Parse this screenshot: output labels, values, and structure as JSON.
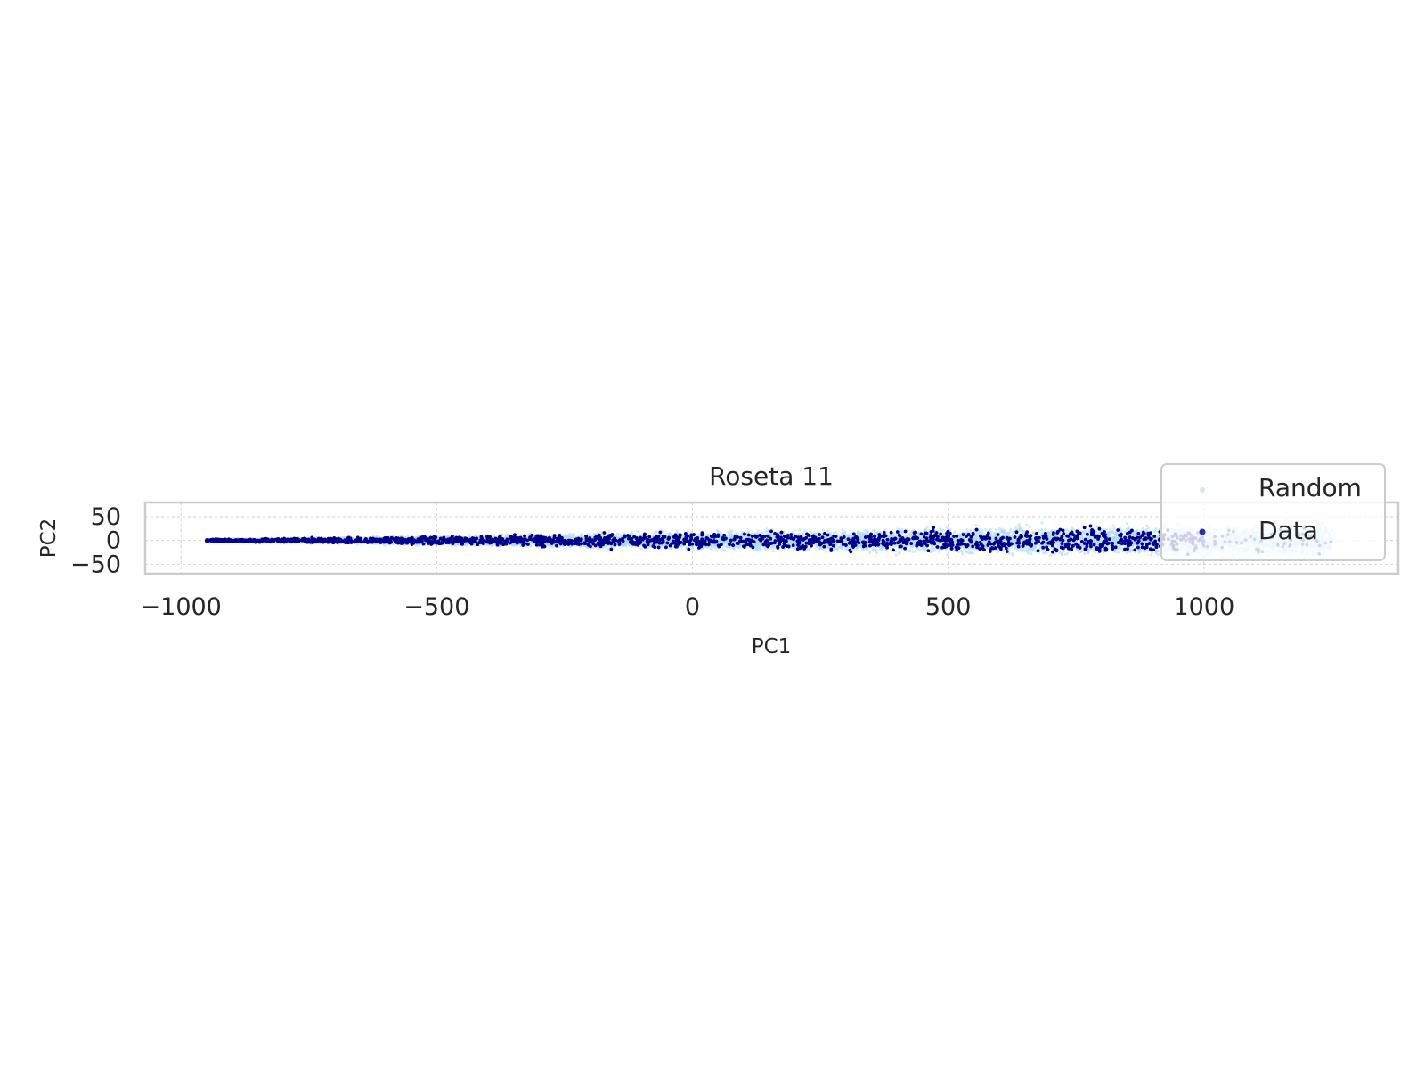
{
  "chart_data": {
    "type": "scatter",
    "title": "Roseta 11",
    "xlabel": "PC1",
    "ylabel": "PC2",
    "xlim": [
      -1070,
      1380
    ],
    "ylim": [
      -70,
      80
    ],
    "xticks": [
      -1000,
      -500,
      0,
      500,
      1000
    ],
    "xtick_labels": [
      "−1000",
      "−500",
      "0",
      "500",
      "1000"
    ],
    "yticks": [
      50,
      0,
      -50
    ],
    "ytick_labels": [
      "50",
      "0",
      "−50"
    ],
    "grid": true,
    "legend_position": "upper-right",
    "series": [
      {
        "name": "Random",
        "color": "#add8f7",
        "x_range": [
          -950,
          1250
        ],
        "envelope_halfwidth_at_xmin": 4,
        "envelope_halfwidth_at_xmax": 55,
        "approx_points": 9000
      },
      {
        "name": "Data",
        "color": "#00008b",
        "x_range": [
          -950,
          1250
        ],
        "envelope_halfwidth_at_xmin": 4,
        "envelope_halfwidth_at_xmax": 55,
        "approx_points": 8000
      }
    ]
  }
}
